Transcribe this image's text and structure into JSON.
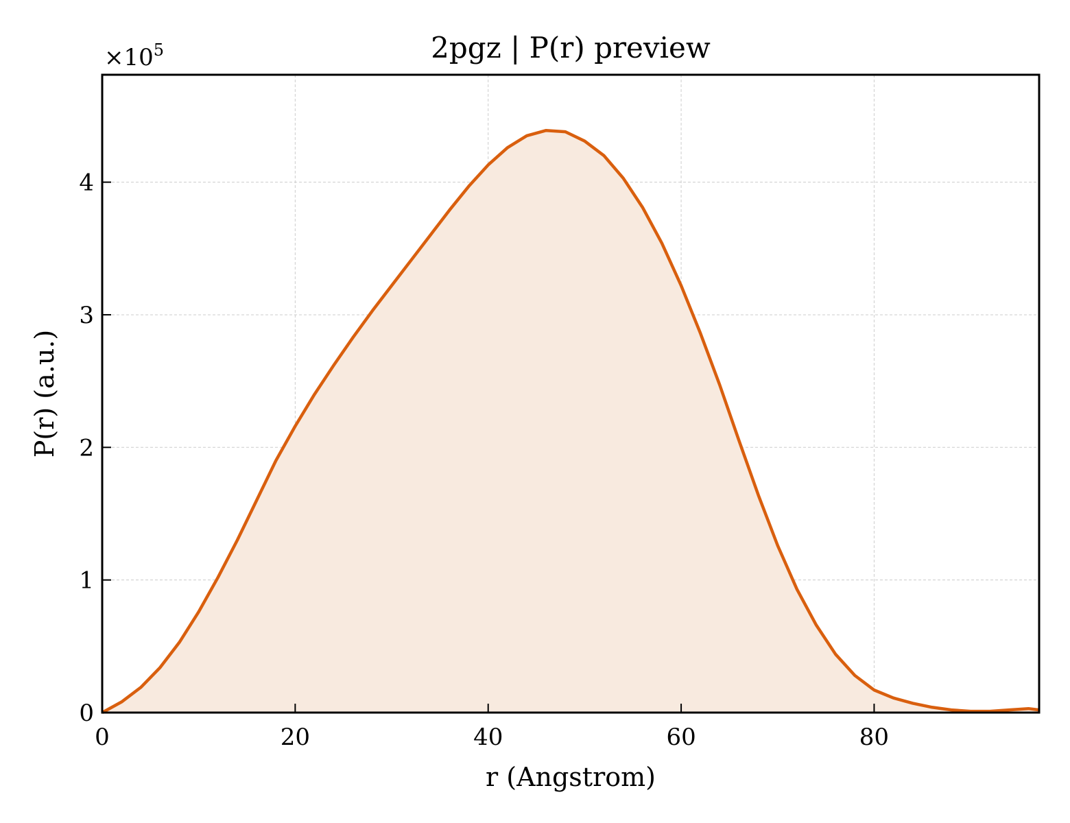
{
  "chart_data": {
    "type": "area",
    "title": "2pgz | P(r) preview",
    "xlabel": "r (Angstrom)",
    "ylabel": "P(r) (a.u.)",
    "y_multiplier": {
      "base": "×10",
      "exponent": "5"
    },
    "xlim": [
      0,
      97.1
    ],
    "ylim": [
      0,
      4.81
    ],
    "xticks": [
      0,
      20,
      40,
      60,
      80
    ],
    "yticks": [
      0,
      1,
      2,
      3,
      4
    ],
    "grid": true,
    "line_color": "#d95f0e",
    "fill_color": "#f8eadf",
    "series": [
      {
        "x": [
          0,
          2,
          4,
          6,
          8,
          10,
          12,
          14,
          16,
          18,
          20,
          22,
          24,
          26,
          28,
          30,
          32,
          34,
          36,
          38,
          40,
          42,
          44,
          46,
          48,
          50,
          52,
          54,
          56,
          58,
          60,
          62,
          64,
          66,
          68,
          70,
          72,
          74,
          76,
          78,
          80,
          82,
          84,
          86,
          88,
          90,
          92,
          94,
          96,
          97.1
        ],
        "values": [
          0,
          0.08,
          0.19,
          0.34,
          0.53,
          0.76,
          1.02,
          1.3,
          1.6,
          1.9,
          2.16,
          2.4,
          2.62,
          2.83,
          3.03,
          3.22,
          3.41,
          3.6,
          3.79,
          3.97,
          4.13,
          4.26,
          4.35,
          4.39,
          4.38,
          4.31,
          4.2,
          4.03,
          3.81,
          3.54,
          3.22,
          2.86,
          2.47,
          2.05,
          1.64,
          1.26,
          0.93,
          0.66,
          0.44,
          0.28,
          0.17,
          0.11,
          0.07,
          0.04,
          0.02,
          0.01,
          0.01,
          0.02,
          0.03,
          0.02
        ]
      }
    ]
  }
}
